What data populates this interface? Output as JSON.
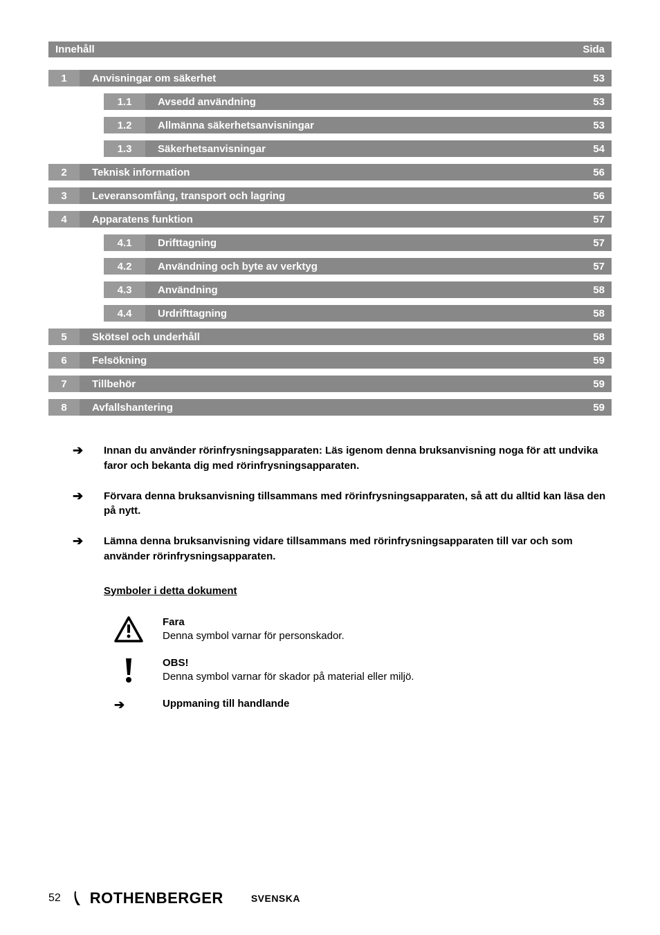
{
  "header": {
    "left": "Innehåll",
    "right": "Sida"
  },
  "toc": [
    {
      "num": "1",
      "title": "Anvisningar om säkerhet",
      "page": "53",
      "sub": false
    },
    {
      "num": "1.1",
      "title": "Avsedd användning",
      "page": "53",
      "sub": true
    },
    {
      "num": "1.2",
      "title": "Allmänna säkerhetsanvisningar",
      "page": "53",
      "sub": true
    },
    {
      "num": "1.3",
      "title": "Säkerhetsanvisningar",
      "page": "54",
      "sub": true
    },
    {
      "num": "2",
      "title": "Teknisk information",
      "page": "56",
      "sub": false
    },
    {
      "num": "3",
      "title": "Leveransomfång, transport och lagring",
      "page": "56",
      "sub": false
    },
    {
      "num": "4",
      "title": "Apparatens funktion",
      "page": "57",
      "sub": false
    },
    {
      "num": "4.1",
      "title": "Drifttagning",
      "page": "57",
      "sub": true
    },
    {
      "num": "4.2",
      "title": "Användning och byte av verktyg",
      "page": "57",
      "sub": true
    },
    {
      "num": "4.3",
      "title": "Användning",
      "page": "58",
      "sub": true
    },
    {
      "num": "4.4",
      "title": "Urdrifttagning",
      "page": "58",
      "sub": true
    },
    {
      "num": "5",
      "title": "Skötsel och underhåll",
      "page": "58",
      "sub": false
    },
    {
      "num": "6",
      "title": "Felsökning",
      "page": "59",
      "sub": false
    },
    {
      "num": "7",
      "title": "Tillbehör",
      "page": "59",
      "sub": false
    },
    {
      "num": "8",
      "title": "Avfallshantering",
      "page": "59",
      "sub": false
    }
  ],
  "bullets": [
    "Innan du använder rörinfrysningsapparaten: Läs igenom denna bruksanvisning noga för att undvika faror och bekanta dig med rörinfrysningsapparaten.",
    "Förvara denna bruksanvisning tillsammans med rörinfrysningsapparaten, så att du alltid kan läsa den på nytt.",
    "Lämna denna bruksanvisning vidare tillsammans med rörinfrysningsapparaten till var och som använder rörinfrysningsapparaten."
  ],
  "symbols_heading": "Symboler i detta dokument",
  "symbols": [
    {
      "icon": "warning-triangle",
      "title": "Fara",
      "desc": "Denna symbol varnar för personskador."
    },
    {
      "icon": "exclamation",
      "title": "OBS!",
      "desc": "Denna symbol varnar för skador på material eller miljö."
    },
    {
      "icon": "arrow",
      "title": "Uppmaning till handlande",
      "desc": ""
    }
  ],
  "footer": {
    "page": "52",
    "brand": "ROTHENBERGER",
    "lang": "SVENSKA"
  },
  "colors": {
    "bar_bg": "#888888",
    "numbox_bg": "#9a9a9a",
    "text_white": "#ffffff",
    "text_black": "#000000",
    "page_bg": "#ffffff"
  },
  "typography": {
    "base_font": "Arial, Helvetica, sans-serif",
    "toc_fontsize": 15,
    "bullet_fontsize": 15,
    "brand_fontsize": 22
  }
}
